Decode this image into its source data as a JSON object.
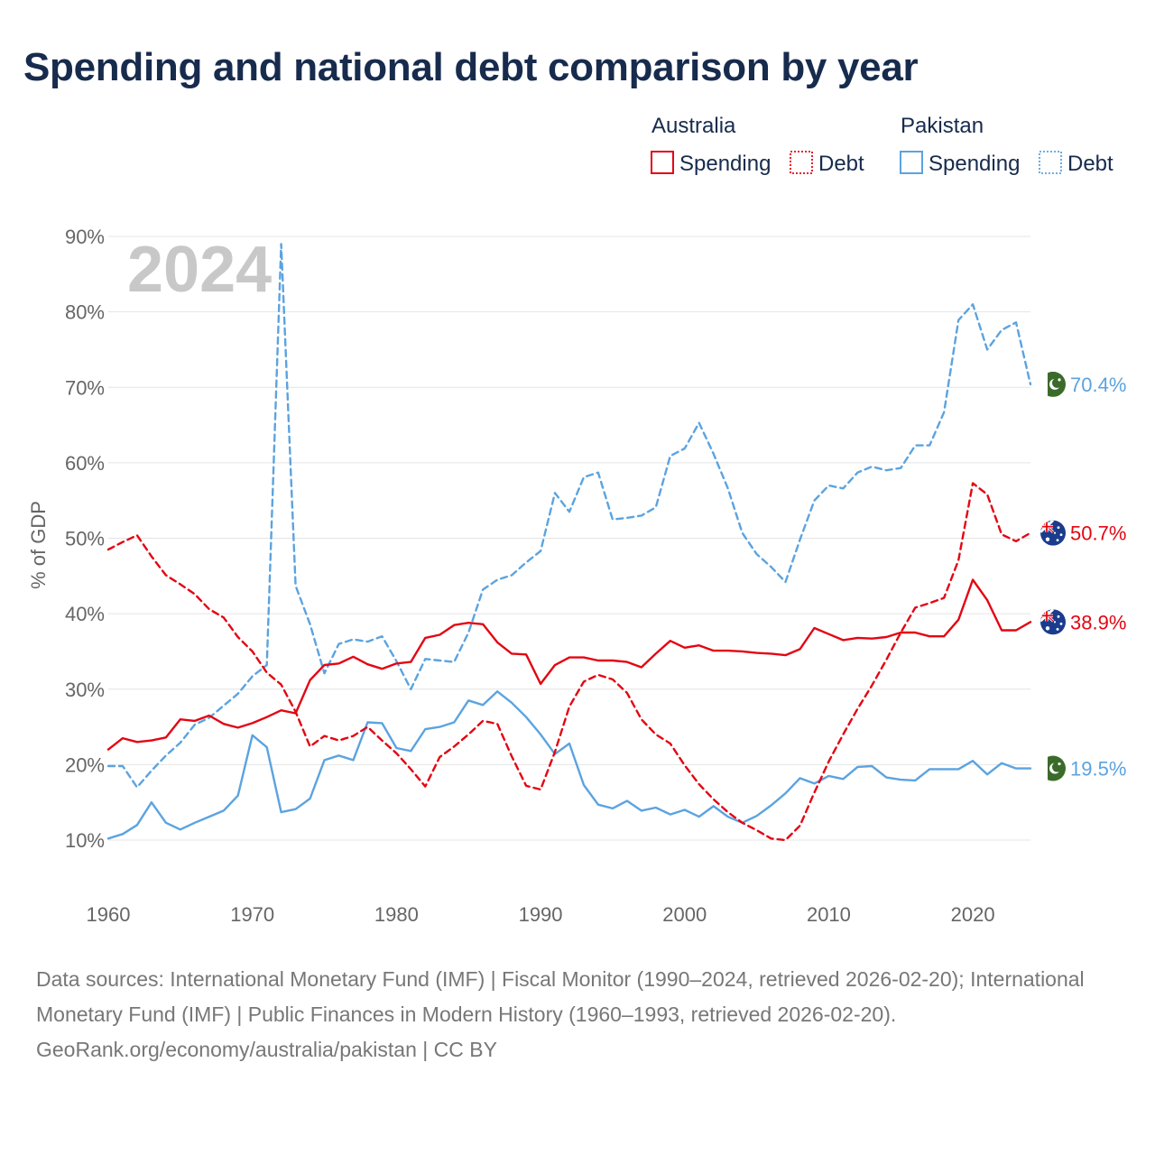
{
  "chart_data": {
    "type": "line",
    "title": "Spending and national debt comparison by year",
    "ylabel": "% of GDP",
    "xlabel": "",
    "xlim": [
      1960,
      2024
    ],
    "ylim": [
      10,
      90
    ],
    "x_ticks": [
      1960,
      1970,
      1980,
      1990,
      2000,
      2010,
      2020
    ],
    "x_tick_labels": [
      "1960",
      "1970",
      "1980",
      "1990",
      "2000",
      "2010",
      "2020"
    ],
    "y_ticks": [
      10,
      20,
      30,
      40,
      50,
      60,
      70,
      80,
      90
    ],
    "y_tick_labels": [
      "10%",
      "20%",
      "30%",
      "40%",
      "50%",
      "60%",
      "70%",
      "80%",
      "90%"
    ],
    "grid": true,
    "current_year": "2024",
    "legend": {
      "groups": [
        {
          "name": "Australia",
          "items": [
            {
              "label": "Spending",
              "style": "solid",
              "color": "#e30613"
            },
            {
              "label": "Debt",
              "style": "dotted",
              "color": "#e30613"
            }
          ]
        },
        {
          "name": "Pakistan",
          "items": [
            {
              "label": "Spending",
              "style": "solid",
              "color": "#5ba3e0"
            },
            {
              "label": "Debt",
              "style": "dotted",
              "color": "#5ba3e0"
            }
          ]
        }
      ]
    },
    "series": [
      {
        "name": "Pakistan Debt",
        "country": "Pakistan",
        "measure": "Debt",
        "color": "#5ba3e0",
        "dashed": true,
        "end_label": "70.4%",
        "flag": "pakistan-flag",
        "x": [
          1960,
          1961,
          1962,
          1963,
          1964,
          1965,
          1966,
          1967,
          1968,
          1969,
          1970,
          1971,
          1972,
          1973,
          1974,
          1975,
          1976,
          1977,
          1978,
          1979,
          1980,
          1981,
          1982,
          1983,
          1984,
          1985,
          1986,
          1987,
          1988,
          1989,
          1990,
          1991,
          1992,
          1993,
          1994,
          1995,
          1996,
          1997,
          1998,
          1999,
          2000,
          2001,
          2002,
          2003,
          2004,
          2005,
          2006,
          2007,
          2008,
          2009,
          2010,
          2011,
          2012,
          2013,
          2014,
          2015,
          2016,
          2017,
          2018,
          2019,
          2020,
          2021,
          2022,
          2023,
          2024
        ],
        "values": [
          19.8,
          19.8,
          17.0,
          19.2,
          21.2,
          22.9,
          25.3,
          26.2,
          27.8,
          29.4,
          31.7,
          33.2,
          89.0,
          43.7,
          38.6,
          32.1,
          36.0,
          36.6,
          36.3,
          37.0,
          33.7,
          30.0,
          34.0,
          33.8,
          33.6,
          37.5,
          43.2,
          44.5,
          45.1,
          46.8,
          48.3,
          56.0,
          53.5,
          58.1,
          58.7,
          52.5,
          52.7,
          53.0,
          54.1,
          60.9,
          61.9,
          65.3,
          61.2,
          56.6,
          50.7,
          47.9,
          46.2,
          44.2,
          49.8,
          55.0,
          57.0,
          56.6,
          58.7,
          59.5,
          59.0,
          59.3,
          62.3,
          62.3,
          66.7,
          78.9,
          81.0,
          75.0,
          77.6,
          78.6,
          70.4
        ]
      },
      {
        "name": "Pakistan Spending",
        "country": "Pakistan",
        "measure": "Spending",
        "color": "#5ba3e0",
        "dashed": false,
        "end_label": "19.5%",
        "flag": "pakistan-flag",
        "x": [
          1960,
          1961,
          1962,
          1963,
          1964,
          1965,
          1966,
          1967,
          1968,
          1969,
          1970,
          1971,
          1972,
          1973,
          1974,
          1975,
          1976,
          1977,
          1978,
          1979,
          1980,
          1981,
          1982,
          1983,
          1984,
          1985,
          1986,
          1987,
          1988,
          1989,
          1990,
          1991,
          1992,
          1993,
          1994,
          1995,
          1996,
          1997,
          1998,
          1999,
          2000,
          2001,
          2002,
          2003,
          2004,
          2005,
          2006,
          2007,
          2008,
          2009,
          2010,
          2011,
          2012,
          2013,
          2014,
          2015,
          2016,
          2017,
          2018,
          2019,
          2020,
          2021,
          2022,
          2023,
          2024
        ],
        "values": [
          10.2,
          10.8,
          12.0,
          15.0,
          12.3,
          11.4,
          12.3,
          13.1,
          13.9,
          15.9,
          23.9,
          22.3,
          13.7,
          14.1,
          15.5,
          20.6,
          21.2,
          20.6,
          25.6,
          25.5,
          22.2,
          21.8,
          24.7,
          25.0,
          25.6,
          28.5,
          27.9,
          29.7,
          28.2,
          26.3,
          24.0,
          21.4,
          22.8,
          17.3,
          14.7,
          14.2,
          15.2,
          13.9,
          14.3,
          13.4,
          14.0,
          13.1,
          14.5,
          13.1,
          12.3,
          13.2,
          14.6,
          16.2,
          18.2,
          17.5,
          18.5,
          18.1,
          19.7,
          19.8,
          18.3,
          18.0,
          17.9,
          19.4,
          19.4,
          19.4,
          20.5,
          18.7,
          20.2,
          19.5,
          19.5
        ]
      },
      {
        "name": "Australia Debt",
        "country": "Australia",
        "measure": "Debt",
        "color": "#e30613",
        "dashed": true,
        "end_label": "50.7%",
        "flag": "australia-flag",
        "x": [
          1960,
          1961,
          1962,
          1963,
          1964,
          1965,
          1966,
          1967,
          1968,
          1969,
          1970,
          1971,
          1972,
          1973,
          1974,
          1975,
          1976,
          1977,
          1978,
          1979,
          1980,
          1981,
          1982,
          1983,
          1984,
          1985,
          1986,
          1987,
          1988,
          1989,
          1990,
          1991,
          1992,
          1993,
          1994,
          1995,
          1996,
          1997,
          1998,
          1999,
          2000,
          2001,
          2002,
          2003,
          2004,
          2005,
          2006,
          2007,
          2008,
          2009,
          2010,
          2011,
          2012,
          2013,
          2014,
          2015,
          2016,
          2017,
          2018,
          2019,
          2020,
          2021,
          2022,
          2023,
          2024
        ],
        "values": [
          48.5,
          49.5,
          50.4,
          47.6,
          45.1,
          43.9,
          42.6,
          40.6,
          39.5,
          36.9,
          35.0,
          32.2,
          30.6,
          27.0,
          22.4,
          23.8,
          23.2,
          23.8,
          25.0,
          23.2,
          21.5,
          19.4,
          17.1,
          21.0,
          22.4,
          24.0,
          25.8,
          25.4,
          21.1,
          17.2,
          16.7,
          21.7,
          27.7,
          31.0,
          31.9,
          31.3,
          29.5,
          26.0,
          24.0,
          22.8,
          19.9,
          17.4,
          15.4,
          13.7,
          12.3,
          11.3,
          10.2,
          10.0,
          11.9,
          16.3,
          20.4,
          24.0,
          27.4,
          30.5,
          33.9,
          37.5,
          40.8,
          41.4,
          42.1,
          47.1,
          57.3,
          55.8,
          50.5,
          49.6,
          50.7
        ]
      },
      {
        "name": "Australia Spending",
        "country": "Australia",
        "measure": "Spending",
        "color": "#e30613",
        "dashed": false,
        "end_label": "38.9%",
        "flag": "australia-flag",
        "x": [
          1960,
          1961,
          1962,
          1963,
          1964,
          1965,
          1966,
          1967,
          1968,
          1969,
          1970,
          1971,
          1972,
          1973,
          1974,
          1975,
          1976,
          1977,
          1978,
          1979,
          1980,
          1981,
          1982,
          1983,
          1984,
          1985,
          1986,
          1987,
          1988,
          1989,
          1990,
          1991,
          1992,
          1993,
          1994,
          1995,
          1996,
          1997,
          1998,
          1999,
          2000,
          2001,
          2002,
          2003,
          2004,
          2005,
          2006,
          2007,
          2008,
          2009,
          2010,
          2011,
          2012,
          2013,
          2014,
          2015,
          2016,
          2017,
          2018,
          2019,
          2020,
          2021,
          2022,
          2023,
          2024
        ],
        "values": [
          22.0,
          23.5,
          23.0,
          23.2,
          23.6,
          26.0,
          25.8,
          26.5,
          25.4,
          24.9,
          25.5,
          26.3,
          27.2,
          26.8,
          31.2,
          33.2,
          33.4,
          34.3,
          33.3,
          32.7,
          33.4,
          33.6,
          36.8,
          37.2,
          38.5,
          38.8,
          38.6,
          36.2,
          34.7,
          34.6,
          30.7,
          33.2,
          34.2,
          34.2,
          33.8,
          33.8,
          33.6,
          32.9,
          34.7,
          36.4,
          35.5,
          35.8,
          35.1,
          35.1,
          35.0,
          34.8,
          34.7,
          34.5,
          35.3,
          38.1,
          37.3,
          36.5,
          36.8,
          36.7,
          36.9,
          37.5,
          37.5,
          37.0,
          37.0,
          39.2,
          44.5,
          41.8,
          37.8,
          37.8,
          38.9
        ]
      }
    ]
  },
  "footer": {
    "sources": "Data sources: International Monetary Fund (IMF) | Fiscal Monitor (1990–2024, retrieved 2026-02-20); International Monetary Fund (IMF) | Public Finances in Modern History (1960–1993, retrieved 2026-02-20).",
    "credit": "GeoRank.org/economy/australia/pakistan | CC BY"
  }
}
